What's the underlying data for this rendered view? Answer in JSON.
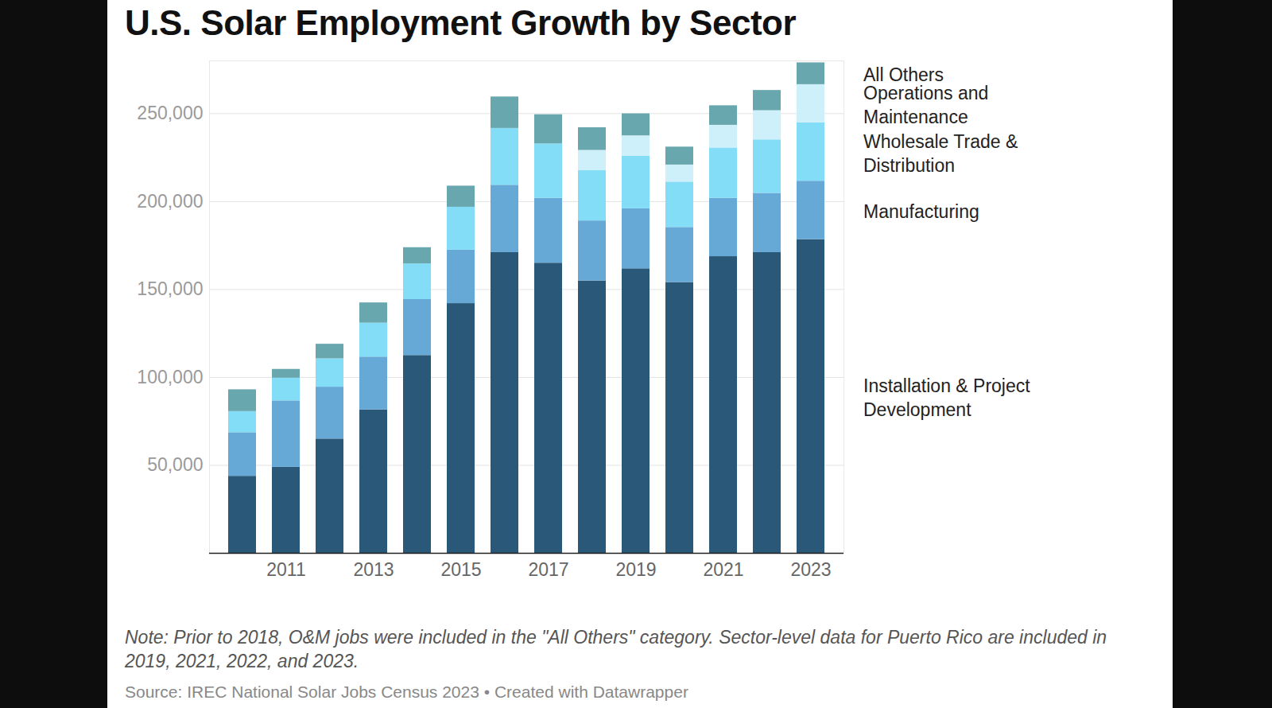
{
  "chart_data": {
    "type": "bar",
    "title": "U.S. Solar Employment Growth by Sector",
    "note": "Note: Prior to 2018, O&M jobs were included in the \"All Others\" category. Sector-level data for Puerto Rico are included in 2019, 2021, 2022, and 2023.",
    "source": "Source: IREC National Solar Jobs Census 2023 • Created with Datawrapper",
    "stacked": true,
    "grid": true,
    "categories": [
      null,
      "2011",
      null,
      "2013",
      null,
      "2015",
      null,
      "2017",
      null,
      "2019",
      null,
      "2021",
      null,
      "2023"
    ],
    "series": [
      {
        "name": "Installation & Project Development",
        "color": "#2a5878",
        "values": [
          43800,
          48900,
          65000,
          81600,
          112500,
          142000,
          171000,
          165000,
          154900,
          161800,
          154000,
          168700,
          171000,
          178400
        ]
      },
      {
        "name": "Manufacturing",
        "color": "#67a9d6",
        "values": [
          24800,
          37800,
          29500,
          30000,
          31800,
          30400,
          38300,
          36900,
          34100,
          34100,
          31300,
          33200,
          33700,
          33200
        ]
      },
      {
        "name": "Wholesale Trade & Distribution",
        "color": "#84ddf6",
        "values": [
          12000,
          12900,
          16100,
          19300,
          20300,
          24400,
          32300,
          30900,
          28600,
          30000,
          25800,
          28600,
          30400,
          33200
        ]
      },
      {
        "name": "Operations and Maintenance",
        "color": "#cdf0fb",
        "values": [
          null,
          null,
          null,
          null,
          null,
          null,
          null,
          null,
          11500,
          11500,
          9700,
          12900,
          16600,
          21700
        ]
      },
      {
        "name": "All Others",
        "color": "#68a7ad",
        "values": [
          12400,
          5000,
          8300,
          11500,
          9200,
          12000,
          17900,
          16600,
          12900,
          12500,
          10200,
          11100,
          11500,
          12400
        ]
      }
    ],
    "ylim": [
      0,
      280000
    ],
    "yticks": [
      {
        "value": 50000,
        "label": "50,000"
      },
      {
        "value": 100000,
        "label": "100,000"
      },
      {
        "value": 150000,
        "label": "150,000"
      },
      {
        "value": 200000,
        "label": "200,000"
      },
      {
        "value": 250000,
        "label": "250,000"
      }
    ]
  }
}
